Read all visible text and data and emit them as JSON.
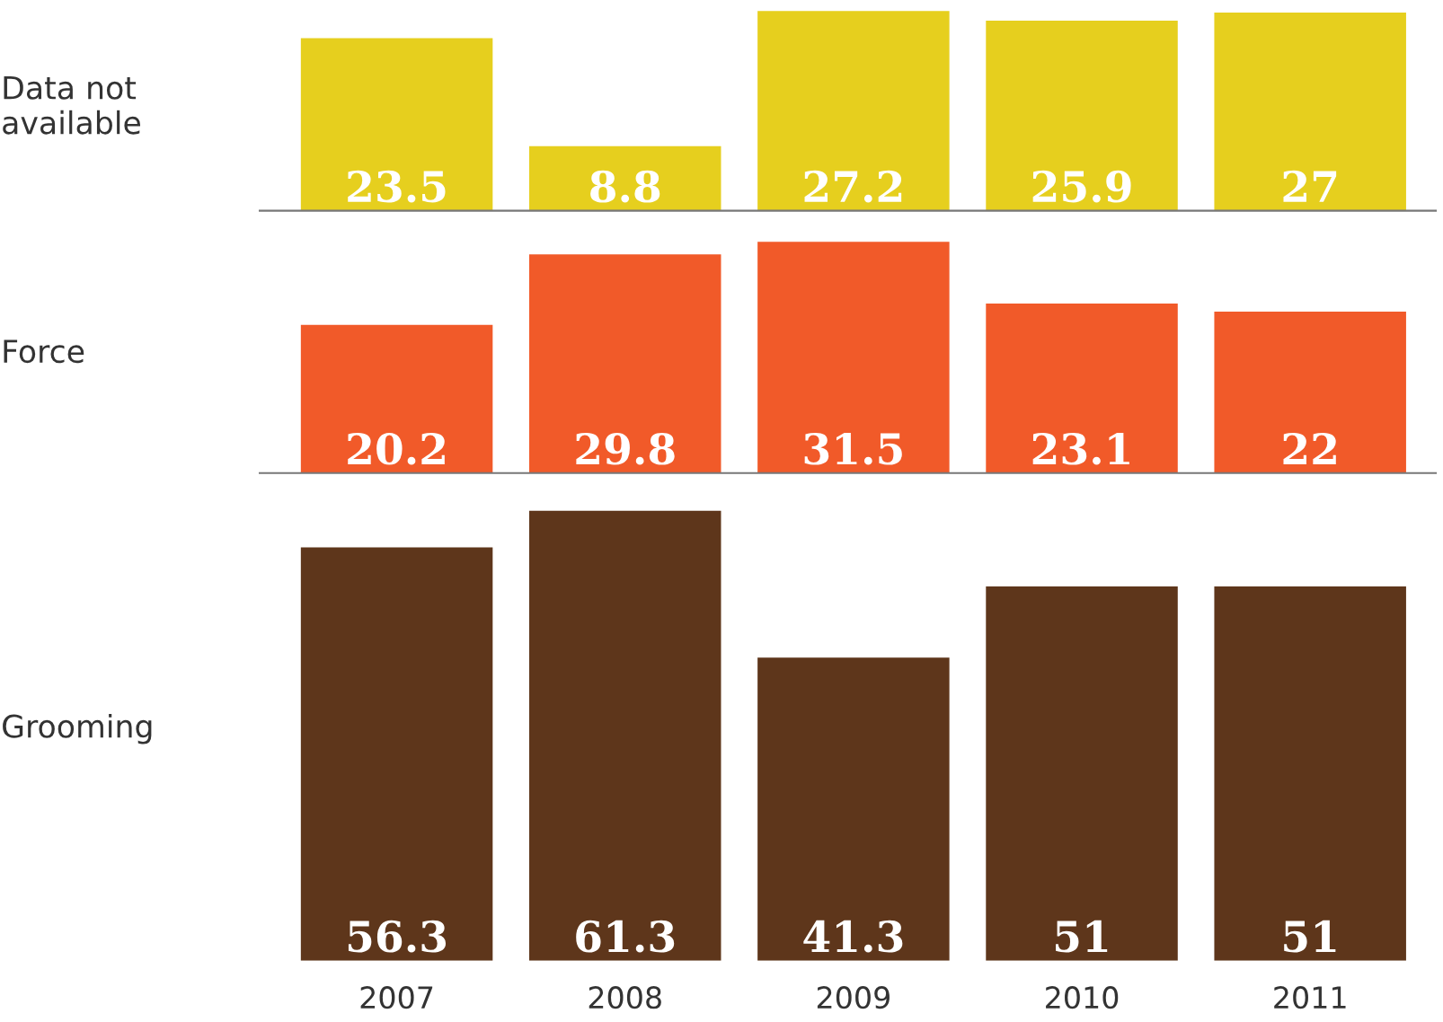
{
  "chart_data": [
    {
      "type": "bar",
      "ylabel": "Data not\navailable",
      "categories": [
        "2007",
        "2008",
        "2009",
        "2010",
        "2011"
      ],
      "series": [
        {
          "color": "#e6cf1e",
          "values": [
            23.5,
            8.8,
            27.2,
            25.9,
            27
          ]
        }
      ],
      "data_labels": true,
      "tick_labels": false
    },
    {
      "type": "bar",
      "ylabel": "Force",
      "categories": [
        "2007",
        "2008",
        "2009",
        "2010",
        "2011"
      ],
      "series": [
        {
          "color": "#f15a29",
          "values": [
            20.2,
            29.8,
            31.5,
            23.1,
            22
          ]
        }
      ],
      "data_labels": true,
      "tick_labels": false
    },
    {
      "type": "bar",
      "ylabel": "Grooming",
      "categories": [
        "2007",
        "2008",
        "2009",
        "2010",
        "2011"
      ],
      "series": [
        {
          "color": "#5e361b",
          "values": [
            56.3,
            61.3,
            41.3,
            51,
            51
          ]
        }
      ],
      "data_labels": true,
      "tick_labels": "x"
    }
  ]
}
